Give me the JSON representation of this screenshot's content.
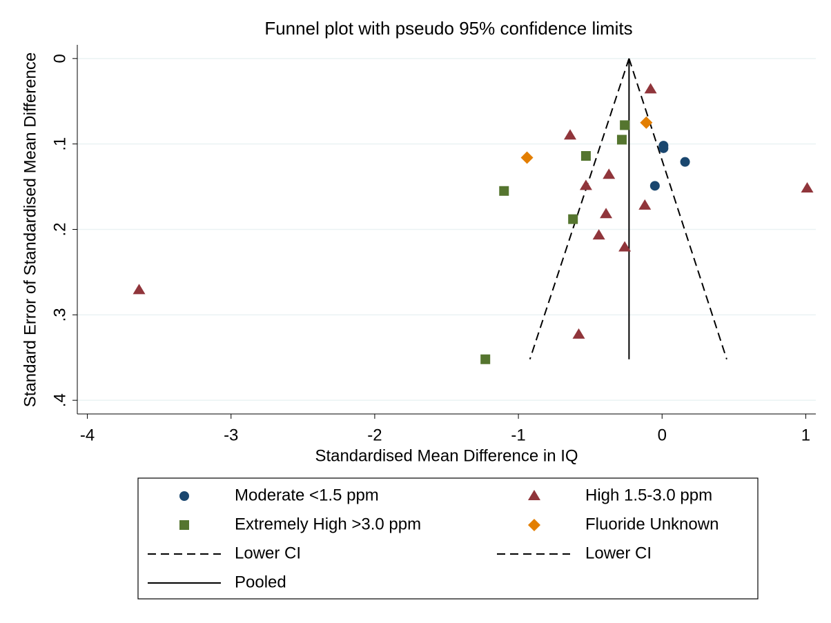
{
  "chart_data": {
    "type": "scatter",
    "title": "Funnel plot with pseudo 95% confidence limits",
    "x_label": "Standardised Mean Difference in IQ",
    "y_label": "Standard Error of Standardised Mean Difference",
    "xlim": [
      -4.07,
      1.07
    ],
    "ylim": [
      -0.016,
      0.416
    ],
    "y_reversed": true,
    "xticks": [
      -4,
      -3,
      -2,
      -1,
      0,
      1
    ],
    "yticks": [
      {
        "value": 0,
        "label": "0"
      },
      {
        "value": 0.1,
        "label": ".1"
      },
      {
        "value": 0.2,
        "label": ".2"
      },
      {
        "value": 0.3,
        "label": ".3"
      },
      {
        "value": 0.4,
        "label": ".4"
      }
    ],
    "grid": true,
    "legend_position": "bottom",
    "series": [
      {
        "name": "Moderate <1.5 ppm",
        "color": "#1a476f",
        "marker": "circle",
        "x": [
          0.01,
          0.01,
          0.16,
          -0.05
        ],
        "values": [
          0.102,
          0.105,
          0.121,
          0.149
        ]
      },
      {
        "name": "High 1.5-3.0 ppm",
        "color": "#90353b",
        "marker": "triangle",
        "x": [
          -0.08,
          -0.64,
          -0.37,
          -0.53,
          1.01,
          -0.12,
          -0.39,
          -0.44,
          -0.26,
          -3.64,
          -0.58
        ],
        "values": [
          0.036,
          0.09,
          0.136,
          0.149,
          0.152,
          0.172,
          0.182,
          0.207,
          0.221,
          0.271,
          0.323
        ]
      },
      {
        "name": "Extremely High >3.0 ppm",
        "color": "#55752f",
        "marker": "square",
        "x": [
          -0.26,
          -0.28,
          -0.53,
          -1.1,
          -0.62,
          -1.23
        ],
        "values": [
          0.078,
          0.095,
          0.114,
          0.155,
          0.188,
          0.352
        ]
      },
      {
        "name": "Fluoride Unknown",
        "color": "#e37e00",
        "marker": "diamond",
        "x": [
          -0.11,
          -0.94
        ],
        "values": [
          0.075,
          0.116
        ]
      },
      {
        "name": "Lower CI",
        "color": "#000000",
        "line": "dashed",
        "x": [
          -0.23,
          -0.92
        ],
        "values": [
          0,
          0.352
        ]
      },
      {
        "name": "Lower CI",
        "color": "#000000",
        "line": "dashed",
        "x": [
          -0.23,
          0.45
        ],
        "values": [
          0,
          0.352
        ]
      },
      {
        "name": "Pooled",
        "color": "#000000",
        "line": "solid",
        "x": [
          -0.23,
          -0.23
        ],
        "values": [
          0,
          0.352
        ]
      }
    ]
  }
}
